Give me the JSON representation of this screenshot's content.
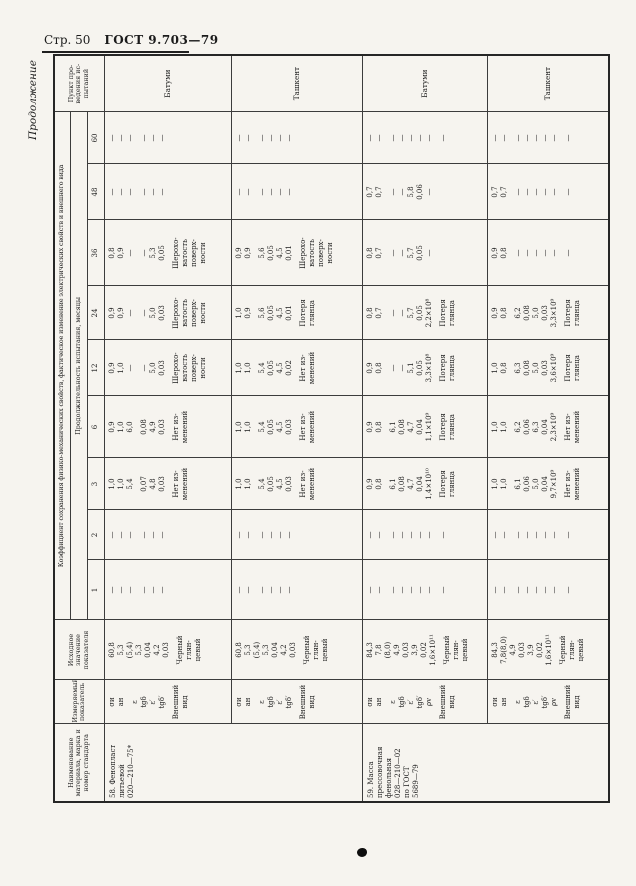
{
  "page": {
    "page_label": "Стр. 50",
    "doc_label": "ГОСТ 9.703—79",
    "continuation": "Продолжение"
  },
  "table": {
    "headers": {
      "material": "Наименование\nматериала, марка и\nномер стандарта",
      "indicator": "Измеряемый\nпоказатель",
      "initial": "Исходное\nзначение\nпоказателя",
      "main": "Коэффициент сохранения физико-механических свойств, фактическое изменение электрических свойств и внешнего вида",
      "duration": "Продолжительность испытания, месяцы",
      "months": [
        "1",
        "2",
        "3",
        "6",
        "12",
        "24",
        "36",
        "48",
        "60"
      ],
      "site": "Пункт про-\nведения ис-\nпытаний"
    },
    "bands": [
      {
        "material": "58. Фенопласт\nлитьевой\n020—210—75*",
        "material_rowspan": 2,
        "indicator_lines": [
          "σи",
          "ан",
          "",
          "ε",
          "tgδ",
          "ε′",
          "tgδ′",
          "",
          "Внешний",
          "вид"
        ],
        "initial_lines": [
          "60,8",
          "5,3",
          "(5,4)",
          "5,3",
          "0,04",
          "4,2",
          "0,03",
          "",
          "Черный",
          "глян-",
          "цевый"
        ],
        "months": {
          "1": [
            "—",
            "—",
            "—",
            "",
            "—",
            "—",
            "—"
          ],
          "2": [
            "—",
            "—",
            "—",
            "",
            "—",
            "—",
            "—"
          ],
          "3": [
            "1,0",
            "1,0",
            "5,4",
            "",
            "0,07",
            "4,8",
            "0,03",
            "",
            "Нет из-",
            "менений"
          ],
          "6": [
            "0,9",
            "1,0",
            "6,0",
            "",
            "0,08",
            "4,9",
            "0,03",
            "",
            "Нет из-",
            "менений"
          ],
          "12": [
            "0,9",
            "1,0",
            "—",
            "",
            "—",
            "5,0",
            "0,03",
            "",
            "Шерохо-",
            "ватость",
            "поверх-",
            "ности"
          ],
          "24": [
            "0,9",
            "0,9",
            "—",
            "",
            "—",
            "5,0",
            "0,03",
            "",
            "Шерохо-",
            "ватость",
            "поверх-",
            "ности"
          ],
          "36": [
            "0,8",
            "0,9",
            "—",
            "",
            "—",
            "5,3",
            "0,05",
            "",
            "Шерохо-",
            "ватость",
            "поверх-",
            "ности"
          ],
          "48": [
            "—",
            "—",
            "—",
            "",
            "—",
            "—",
            "—"
          ],
          "60": [
            "—",
            "—",
            "—",
            "",
            "—",
            "—",
            "—"
          ]
        },
        "site": "Батуми"
      },
      {
        "indicator_lines": [
          "σи",
          "ан",
          "",
          "ε",
          "tgδ",
          "ε′",
          "tgδ′",
          "",
          "Внешний",
          "вид"
        ],
        "initial_lines": [
          "60,8",
          "5,3",
          "(5,4)",
          "5,3",
          "0,04",
          "4,2",
          "0,03",
          "",
          "Черный",
          "глян-",
          "цевый"
        ],
        "months": {
          "1": [
            "—",
            "—",
            "",
            "—",
            "—",
            "—",
            "—"
          ],
          "2": [
            "—",
            "—",
            "",
            "—",
            "—",
            "—",
            "—"
          ],
          "3": [
            "1,0",
            "1,0",
            "",
            "5,4",
            "0,05",
            "4,5",
            "0,03",
            "",
            "Нет из-",
            "менений"
          ],
          "6": [
            "1,0",
            "1,0",
            "",
            "5,4",
            "0,05",
            "4,5",
            "0,03",
            "",
            "Нет из-",
            "менений"
          ],
          "12": [
            "1,0",
            "1,0",
            "",
            "5,4",
            "0,05",
            "4,5",
            "0,02",
            "",
            "Нет из-",
            "менений"
          ],
          "24": [
            "1,0",
            "0,9",
            "",
            "5,6",
            "0,05",
            "4,5",
            "0,01",
            "",
            "Потеря",
            "глянца"
          ],
          "36": [
            "0,9",
            "0,9",
            "",
            "5,6",
            "0,05",
            "4,5",
            "0,01",
            "",
            "Шерохо-",
            "ватость",
            "поверх-",
            "ности"
          ],
          "48": [
            "—",
            "—",
            "",
            "—",
            "—",
            "—",
            "—"
          ],
          "60": [
            "—",
            "—",
            "",
            "—",
            "—",
            "—",
            "—"
          ]
        },
        "site": "Ташкент"
      },
      {
        "material": "59. Масса\nпрессовочная\nфенольная\n028—210—02\nпо ГОСТ\n5689—79",
        "material_rowspan": 2,
        "indicator_lines": [
          "σи",
          "ан",
          "",
          "ε",
          "tgδ",
          "ε′",
          "tgδ′",
          "ρv",
          "",
          "Внешний",
          "вид"
        ],
        "initial_lines": [
          "84,3",
          "7,8",
          "(8,0)",
          "4,9",
          "0,03",
          "3,9",
          "0,02",
          "1,6×10¹¹",
          "",
          "Черный",
          "глян-",
          "цевый"
        ],
        "months": {
          "1": [
            "—",
            "—",
            "",
            "—",
            "—",
            "—",
            "—",
            "—",
            "",
            "—"
          ],
          "2": [
            "—",
            "—",
            "",
            "—",
            "—",
            "—",
            "—",
            "—",
            "",
            "—"
          ],
          "3": [
            "0,9",
            "0,8",
            "",
            "6,1",
            "0,08",
            "4,7",
            "0,04",
            "1,4×10¹⁰",
            "",
            "Потеря",
            "глянца"
          ],
          "6": [
            "0,9",
            "0,8",
            "",
            "6,1",
            "0,08",
            "4,7",
            "0,04",
            "1,1×10⁹",
            "",
            "Потеря",
            "глянца"
          ],
          "12": [
            "0,9",
            "0,8",
            "",
            "—",
            "—",
            "5,1",
            "0,05",
            "3,3×10⁸",
            "",
            "Потеря",
            "глянца"
          ],
          "24": [
            "0,8",
            "0,7",
            "",
            "—",
            "—",
            "5,7",
            "0,05",
            "2,2×10⁸",
            "",
            "Потеря",
            "глянца"
          ],
          "36": [
            "0,8",
            "0,7",
            "",
            "—",
            "—",
            "5,7",
            "0,05",
            "—"
          ],
          "48": [
            "0,7",
            "0,7",
            "",
            "—",
            "—",
            "5,8",
            "0,06",
            "—"
          ],
          "60": [
            "—",
            "—",
            "",
            "—",
            "—",
            "—",
            "—",
            "—",
            "",
            "—"
          ]
        },
        "site": "Батуми"
      },
      {
        "indicator_lines": [
          "σи",
          "ан",
          "",
          "ε",
          "tgδ",
          "ε′",
          "tgδ′",
          "ρv",
          "",
          "Внешний",
          "вид"
        ],
        "initial_lines": [
          "84,3",
          "7,8(8,0)",
          "4,9",
          "0,03",
          "3,9",
          "0,02",
          "1,6×10¹¹",
          "",
          "Черный",
          "глян-",
          "цевый"
        ],
        "months": {
          "1": [
            "—",
            "—",
            "",
            "—",
            "—",
            "—",
            "—",
            "—",
            "",
            "—"
          ],
          "2": [
            "—",
            "—",
            "",
            "—",
            "—",
            "—",
            "—",
            "—",
            "",
            "—"
          ],
          "3": [
            "1,0",
            "1,0",
            "",
            "6,1",
            "0,06",
            "5,0",
            "0,04",
            "9,7×10⁹",
            "",
            "Нет из-",
            "менений"
          ],
          "6": [
            "1,0",
            "1,0",
            "",
            "6,2",
            "0,06",
            "6,3",
            "0,04",
            "2,3×10⁹",
            "",
            "Нет из-",
            "менений"
          ],
          "12": [
            "1,0",
            "0,8",
            "",
            "6,3",
            "0,08",
            "5,0",
            "0,03",
            "3,6×10⁹",
            "",
            "Потеря",
            "глянца"
          ],
          "24": [
            "0,9",
            "0,8",
            "",
            "6,2",
            "0,08",
            "5,0",
            "0,03",
            "3,3×10⁹",
            "",
            "Потеря",
            "глянца"
          ],
          "36": [
            "0,9",
            "0,8",
            "",
            "—",
            "—",
            "—",
            "—",
            "—",
            "",
            "—"
          ],
          "48": [
            "0,7",
            "0,7",
            "",
            "—",
            "—",
            "—",
            "—",
            "—",
            "",
            "—"
          ],
          "60": [
            "—",
            "—",
            "",
            "—",
            "—",
            "—",
            "—",
            "—",
            "",
            "—"
          ]
        },
        "site": "Ташкент"
      }
    ]
  }
}
